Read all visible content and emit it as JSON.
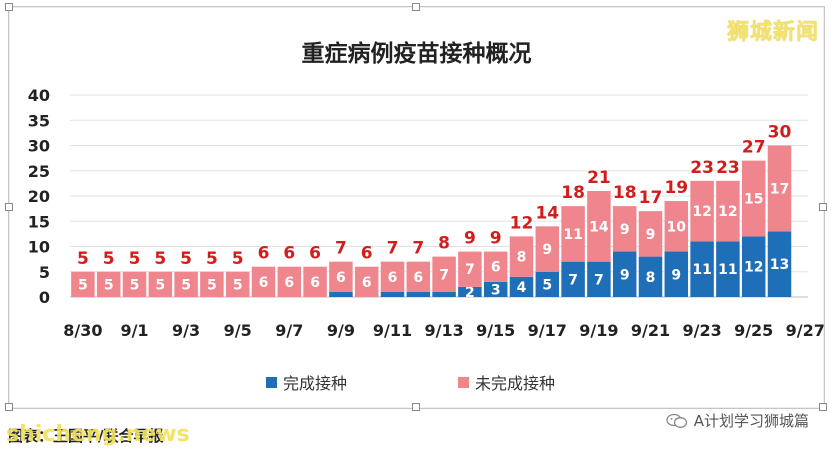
{
  "watermark": "狮城新闻",
  "footer": {
    "caption": "图表：王国平/联合早报",
    "overlay": "shicheng.news",
    "account": "A计划学习狮城篇"
  },
  "colors": {
    "completed": "#1f6fb8",
    "notCompleted": "#f0868d",
    "totalLabel": "#d21d1d"
  },
  "chart_data": {
    "type": "bar",
    "stacked": true,
    "title": "重症病例疫苗接种概况",
    "ylim": [
      0,
      40
    ],
    "yticks": [
      0,
      5,
      10,
      15,
      20,
      25,
      30,
      35,
      40
    ],
    "grid": true,
    "legend_position": "bottom",
    "xtick_labels": [
      "8/30",
      "9/1",
      "9/3",
      "9/5",
      "9/7",
      "9/9",
      "9/11",
      "9/13",
      "9/15",
      "9/17",
      "9/19",
      "9/21",
      "9/23",
      "9/25",
      "9/27"
    ],
    "categories": [
      "8/30",
      "8/31",
      "9/1",
      "9/2",
      "9/3",
      "9/4",
      "9/5",
      "9/6",
      "9/7",
      "9/8",
      "9/9",
      "9/10",
      "9/11",
      "9/12",
      "9/13",
      "9/14",
      "9/15",
      "9/16",
      "9/17",
      "9/18",
      "9/19",
      "9/20",
      "9/21",
      "9/22",
      "9/23",
      "9/24",
      "9/25",
      "9/26"
    ],
    "series": [
      {
        "name": "完成接种",
        "values": [
          0,
          0,
          0,
          0,
          0,
          0,
          0,
          0,
          0,
          0,
          1,
          0,
          1,
          1,
          1,
          2,
          3,
          4,
          5,
          7,
          7,
          9,
          8,
          9,
          11,
          11,
          12,
          13
        ]
      },
      {
        "name": "未完成接种",
        "values": [
          5,
          5,
          5,
          5,
          5,
          5,
          5,
          6,
          6,
          6,
          6,
          6,
          6,
          6,
          7,
          7,
          6,
          8,
          9,
          11,
          14,
          9,
          9,
          10,
          12,
          12,
          15,
          17
        ]
      }
    ],
    "totals": [
      5,
      5,
      5,
      5,
      5,
      5,
      5,
      6,
      6,
      6,
      7,
      6,
      7,
      7,
      8,
      9,
      9,
      12,
      14,
      18,
      21,
      18,
      17,
      19,
      23,
      23,
      27,
      30
    ]
  }
}
